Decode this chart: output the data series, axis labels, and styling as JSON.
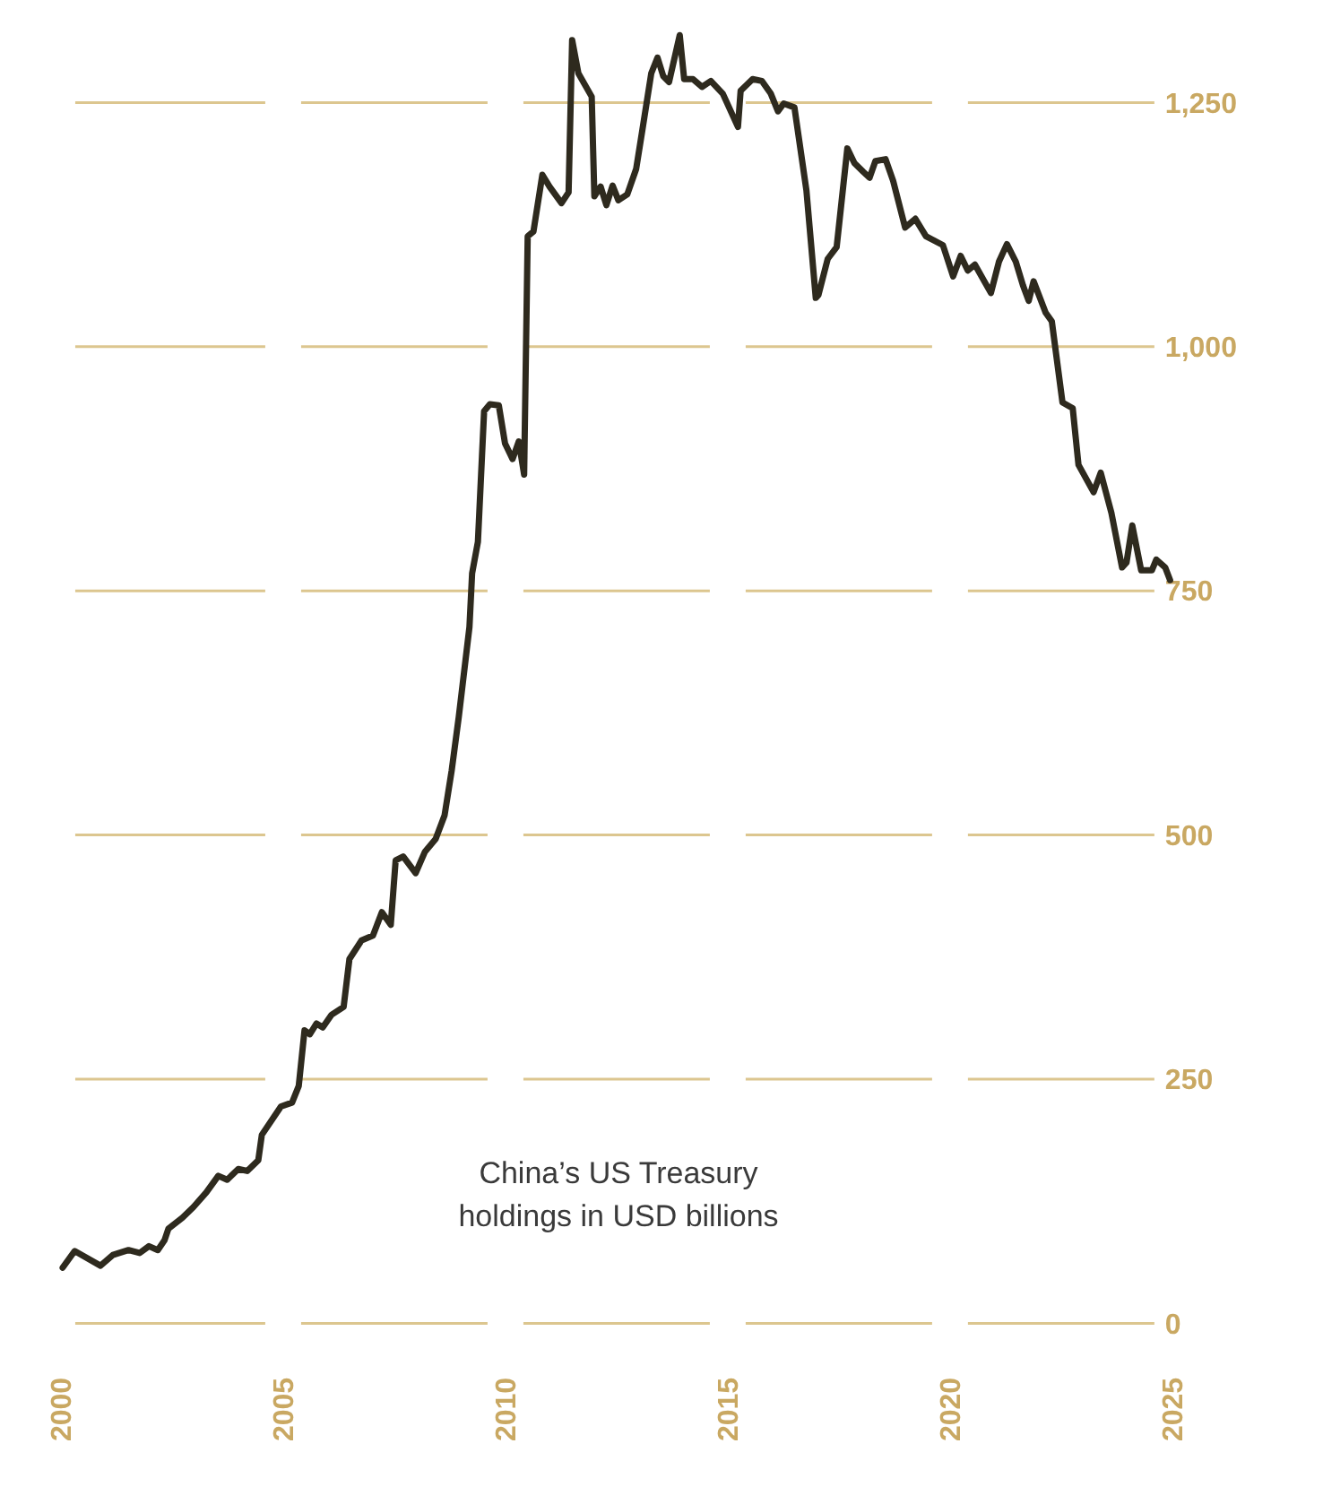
{
  "chart_data": {
    "type": "line",
    "title": "China’s US Treasury holdings in USD billions",
    "xlim": [
      1998.63,
      2028.39
    ],
    "xticks": [
      2000,
      2005,
      2010,
      2015,
      2020,
      2025
    ],
    "ylim": [
      -185,
      1355
    ],
    "yticks": [
      0,
      250,
      500,
      750,
      {
        "value": 1000,
        "label": "1,000"
      },
      {
        "value": 1250,
        "label": "1,250"
      }
    ],
    "grid": "y",
    "marker": "none",
    "line_style": "solid",
    "series": [
      {
        "color": "#2e2a1e",
        "x": [
          2000.04,
          2000.31,
          2000.89,
          2001.17,
          2001.52,
          2001.77,
          2001.98,
          2002.18,
          2002.33,
          2002.42,
          2002.73,
          2002.98,
          2003.27,
          2003.54,
          2003.74,
          2003.99,
          2004.19,
          2004.44,
          2004.52,
          2004.95,
          2005.2,
          2005.35,
          2005.48,
          2005.6,
          2005.75,
          2005.89,
          2006.09,
          2006.36,
          2006.49,
          2006.76,
          2007.02,
          2007.22,
          2007.42,
          2007.53,
          2007.7,
          2007.98,
          2008.19,
          2008.43,
          2008.63,
          2008.79,
          2008.95,
          2009.19,
          2009.25,
          2009.38,
          2009.52,
          2009.65,
          2009.85,
          2009.99,
          2010.16,
          2010.3,
          2010.42,
          2010.5,
          2010.63,
          2010.83,
          2010.99,
          2011.26,
          2011.42,
          2011.5,
          2011.64,
          2011.94,
          2012.0,
          2012.14,
          2012.27,
          2012.41,
          2012.54,
          2012.74,
          2012.94,
          2013.08,
          2013.28,
          2013.42,
          2013.55,
          2013.68,
          2013.92,
          2014.02,
          2014.22,
          2014.42,
          2014.62,
          2014.89,
          2015.23,
          2015.29,
          2015.56,
          2015.77,
          2015.97,
          2016.13,
          2016.26,
          2016.5,
          2016.77,
          2016.98,
          2017.04,
          2017.25,
          2017.45,
          2017.69,
          2017.85,
          2018.05,
          2018.19,
          2018.32,
          2018.55,
          2018.72,
          2018.99,
          2019.22,
          2019.46,
          2019.84,
          2020.07,
          2020.24,
          2020.4,
          2020.56,
          2020.92,
          2021.1,
          2021.28,
          2021.48,
          2021.64,
          2021.77,
          2021.88,
          2022.15,
          2022.29,
          2022.53,
          2022.76,
          2022.89,
          2023.23,
          2023.39,
          2023.63,
          2023.87,
          2023.97,
          2024.1,
          2024.3,
          2024.54,
          2024.64,
          2024.84,
          2024.95
        ],
        "values": [
          57,
          74,
          59,
          70,
          75,
          72,
          79,
          75,
          85,
          97,
          108,
          119,
          134,
          151,
          147,
          158,
          156,
          167,
          193,
          222,
          226,
          243,
          300,
          296,
          307,
          303,
          316,
          324,
          373,
          392,
          397,
          421,
          408,
          474,
          478,
          461,
          483,
          496,
          520,
          566,
          621,
          713,
          768,
          800,
          934,
          941,
          940,
          901,
          885,
          903,
          869,
          1113,
          1118,
          1176,
          1164,
          1147,
          1158,
          1314,
          1280,
          1256,
          1154,
          1164,
          1145,
          1165,
          1150,
          1156,
          1182,
          1222,
          1280,
          1296,
          1277,
          1271,
          1319,
          1274,
          1274,
          1266,
          1272,
          1259,
          1225,
          1262,
          1274,
          1272,
          1259,
          1241,
          1249,
          1245,
          1160,
          1050,
          1053,
          1090,
          1102,
          1203,
          1188,
          1179,
          1173,
          1190,
          1192,
          1170,
          1122,
          1131,
          1113,
          1104,
          1072,
          1093,
          1078,
          1084,
          1055,
          1087,
          1105,
          1087,
          1063,
          1047,
          1067,
          1035,
          1026,
          943,
          937,
          879,
          851,
          871,
          830,
          774,
          779,
          817,
          771,
          771,
          782,
          774,
          761
        ]
      }
    ]
  }
}
